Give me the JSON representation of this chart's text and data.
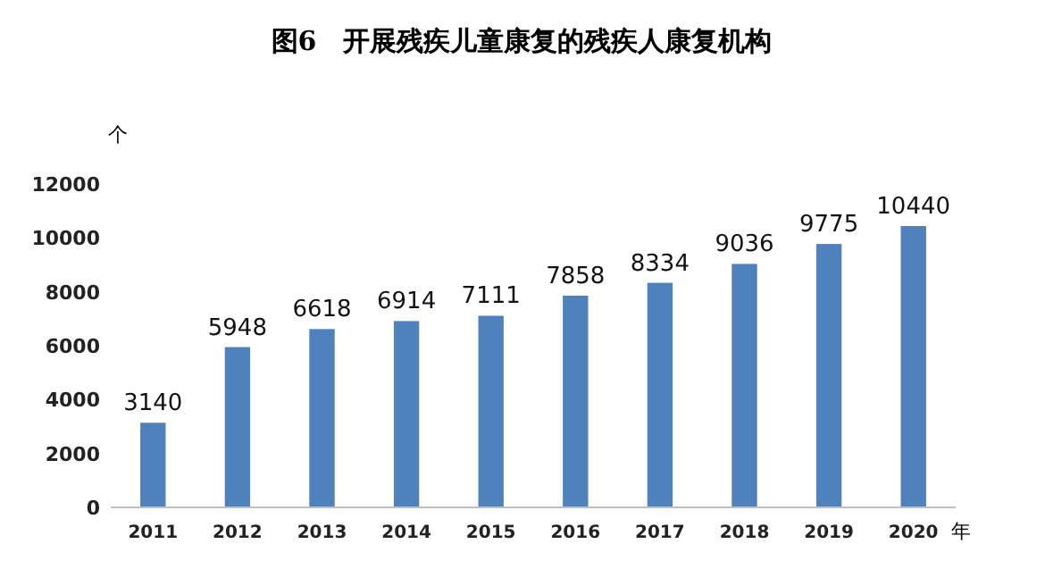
{
  "chart_data": {
    "type": "bar",
    "title": "图6　开展残疾儿童康复的残疾人康复机构",
    "ylabel": "个",
    "xlabel": "年",
    "categories": [
      "2011",
      "2012",
      "2013",
      "2014",
      "2015",
      "2016",
      "2017",
      "2018",
      "2019",
      "2020"
    ],
    "values": [
      3140,
      5948,
      6618,
      6914,
      7111,
      7858,
      8334,
      9036,
      9775,
      10440
    ],
    "color": "#4f81bd",
    "ylim": [
      0,
      12000
    ],
    "yticks": [
      0,
      2000,
      4000,
      6000,
      8000,
      10000,
      12000
    ],
    "data_labels": true
  }
}
